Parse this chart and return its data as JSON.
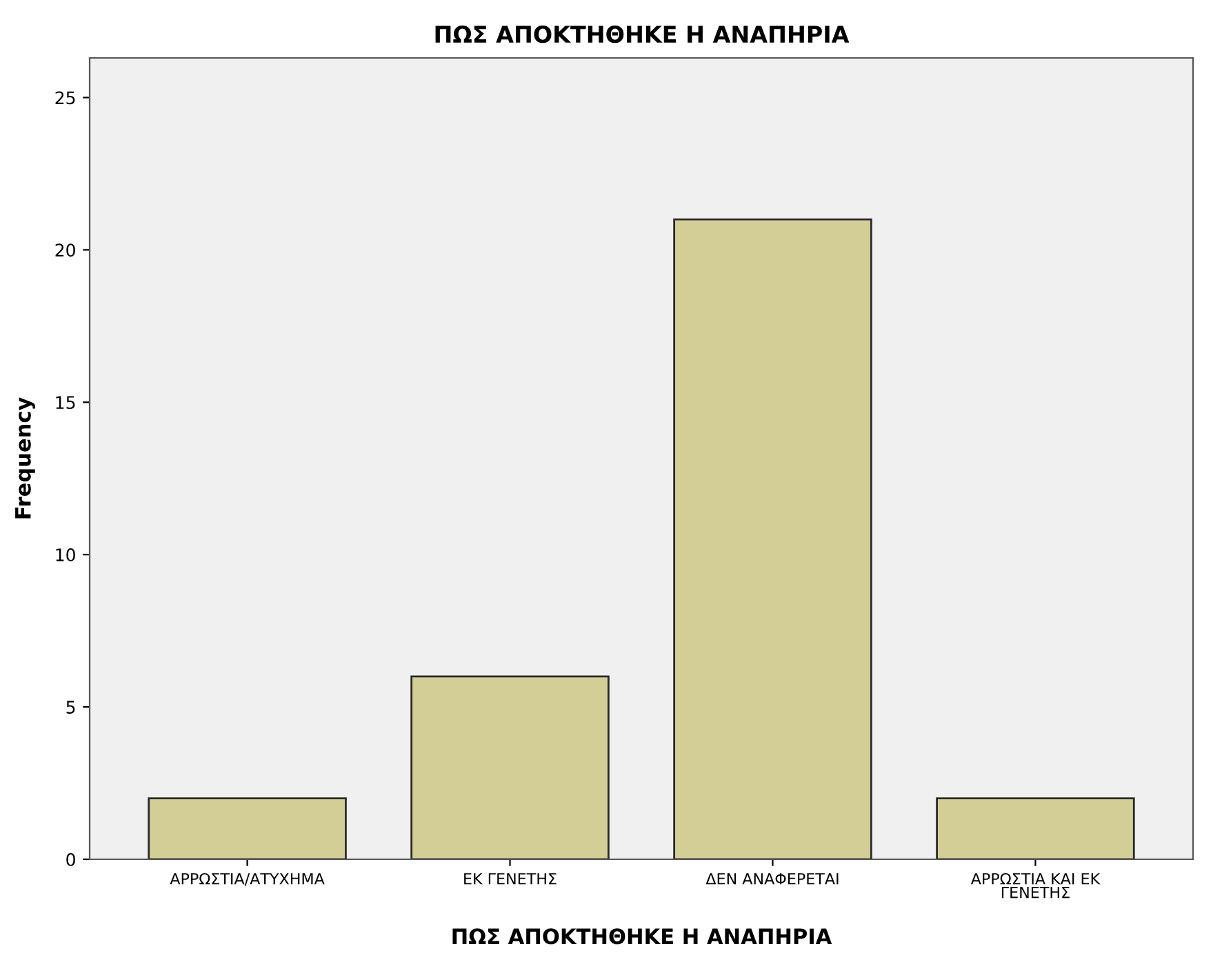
{
  "chart_data": {
    "type": "bar",
    "title": "ΠΩΣ ΑΠΟΚΤΗΘΗΚΕ Η ΑΝΑΠΗΡΙΑ",
    "xlabel": "ΠΩΣ ΑΠΟΚΤΗΘΗΚΕ Η ΑΝΑΠΗΡΙΑ",
    "ylabel": "Frequency",
    "categories": [
      "ΑΡΡΩΣΤΙΑ/ΑΤΥΧΗΜΑ",
      "ΕΚ ΓΕΝΕΤΗΣ",
      "ΔΕΝ ΑΝΑΦΕΡΕΤΑΙ",
      "ΑΡΡΩΣΤΙΑ ΚΑΙ ΕΚ ΓΕΝΕΤΗΣ"
    ],
    "values": [
      2,
      6,
      21,
      2
    ],
    "color": "#d3ce96",
    "ylim": [
      0,
      26.3
    ],
    "yticks": [
      0,
      5,
      10,
      15,
      20,
      25
    ],
    "grid": false
  }
}
